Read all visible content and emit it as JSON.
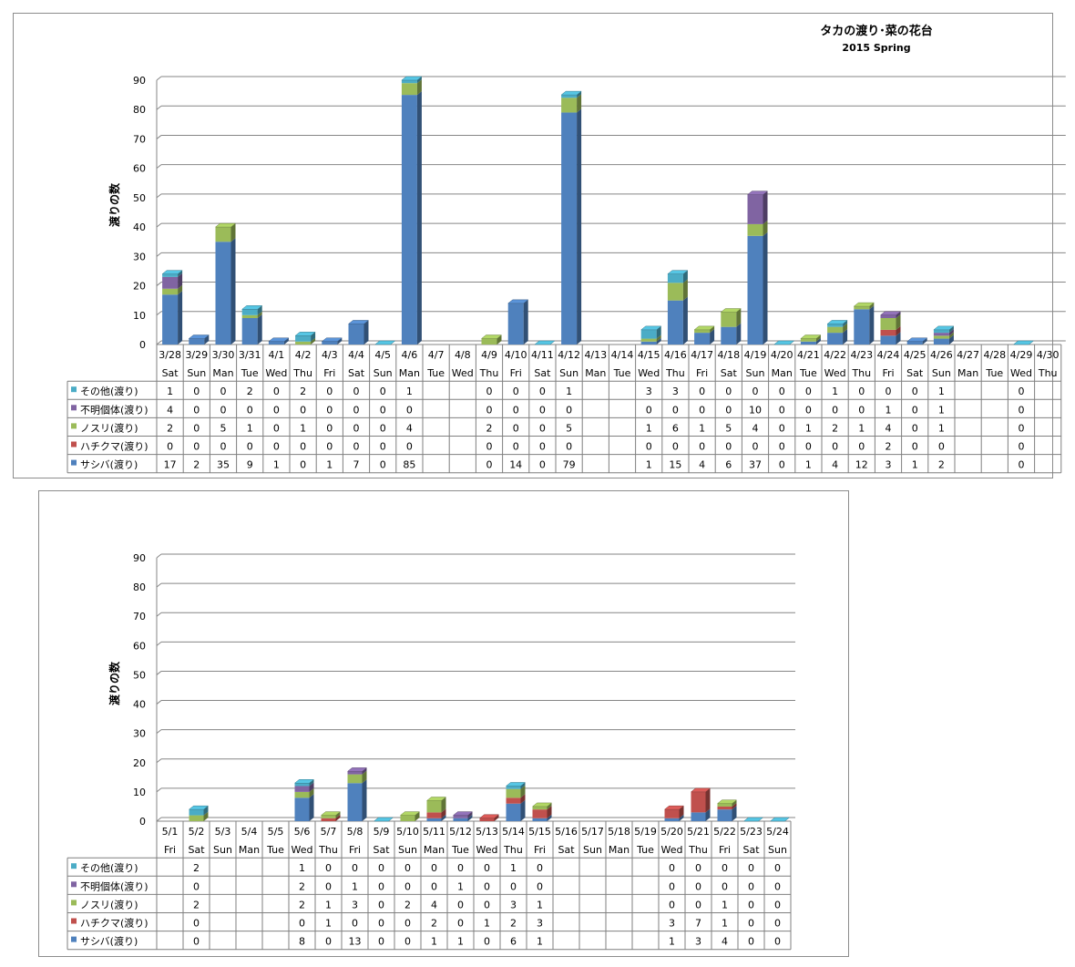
{
  "chart_data": [
    {
      "type": "bar",
      "stacked": true,
      "title": "タカの渡り･菜の花台",
      "subtitle": "2015 Spring",
      "ylabel": "渡りの数",
      "ylim": [
        0,
        90
      ],
      "yticks": [
        "0",
        "10",
        "20",
        "30",
        "40",
        "50",
        "60",
        "70",
        "80",
        "90"
      ],
      "categories": [
        "3/28",
        "3/29",
        "3/30",
        "3/31",
        "4/1",
        "4/2",
        "4/3",
        "4/4",
        "4/5",
        "4/6",
        "4/7",
        "4/8",
        "4/9",
        "4/10",
        "4/11",
        "4/12",
        "4/13",
        "4/14",
        "4/15",
        "4/16",
        "4/17",
        "4/18",
        "4/19",
        "4/20",
        "4/21",
        "4/22",
        "4/23",
        "4/24",
        "4/25",
        "4/26",
        "4/27",
        "4/28",
        "4/29",
        "4/30"
      ],
      "weekdays": [
        "Sat",
        "Sun",
        "Man",
        "Tue",
        "Wed",
        "Thu",
        "Fri",
        "Sat",
        "Sun",
        "Man",
        "Tue",
        "Wed",
        "Thu",
        "Fri",
        "Sat",
        "Sun",
        "Man",
        "Tue",
        "Wed",
        "Thu",
        "Fri",
        "Sat",
        "Sun",
        "Man",
        "Tue",
        "Wed",
        "Thu",
        "Fri",
        "Sat",
        "Sun",
        "Man",
        "Tue",
        "Wed",
        "Thu"
      ],
      "series": [
        {
          "name": "その他(渡り)",
          "color": "#4bacc6",
          "values": [
            1,
            0,
            0,
            2,
            0,
            2,
            0,
            0,
            0,
            1,
            null,
            null,
            0,
            0,
            0,
            1,
            null,
            null,
            3,
            3,
            0,
            0,
            0,
            0,
            0,
            1,
            0,
            0,
            0,
            1,
            null,
            null,
            0,
            null
          ]
        },
        {
          "name": "不明個体(渡り)",
          "color": "#8064a2",
          "values": [
            4,
            0,
            0,
            0,
            0,
            0,
            0,
            0,
            0,
            0,
            null,
            null,
            0,
            0,
            0,
            0,
            null,
            null,
            0,
            0,
            0,
            0,
            10,
            0,
            0,
            0,
            0,
            1,
            0,
            1,
            null,
            null,
            0,
            null
          ]
        },
        {
          "name": "ノスリ(渡り)",
          "color": "#9bbb59",
          "values": [
            2,
            0,
            5,
            1,
            0,
            1,
            0,
            0,
            0,
            4,
            null,
            null,
            2,
            0,
            0,
            5,
            null,
            null,
            1,
            6,
            1,
            5,
            4,
            0,
            1,
            2,
            1,
            4,
            0,
            1,
            null,
            null,
            0,
            null
          ]
        },
        {
          "name": "ハチクマ(渡り)",
          "color": "#c0504d",
          "values": [
            0,
            0,
            0,
            0,
            0,
            0,
            0,
            0,
            0,
            0,
            null,
            null,
            0,
            0,
            0,
            0,
            null,
            null,
            0,
            0,
            0,
            0,
            0,
            0,
            0,
            0,
            0,
            2,
            0,
            0,
            null,
            null,
            0,
            null
          ]
        },
        {
          "name": "サシバ(渡り)",
          "color": "#4f81bd",
          "values": [
            17,
            2,
            35,
            9,
            1,
            0,
            1,
            7,
            0,
            85,
            null,
            null,
            0,
            14,
            0,
            79,
            null,
            null,
            1,
            15,
            4,
            6,
            37,
            0,
            1,
            4,
            12,
            3,
            1,
            2,
            null,
            null,
            0,
            null
          ]
        }
      ]
    },
    {
      "type": "bar",
      "stacked": true,
      "title": "",
      "ylabel": "渡りの数",
      "ylim": [
        0,
        90
      ],
      "yticks": [
        "0",
        "10",
        "20",
        "30",
        "40",
        "50",
        "60",
        "70",
        "80",
        "90"
      ],
      "categories": [
        "5/1",
        "5/2",
        "5/3",
        "5/4",
        "5/5",
        "5/6",
        "5/7",
        "5/8",
        "5/9",
        "5/10",
        "5/11",
        "5/12",
        "5/13",
        "5/14",
        "5/15",
        "5/16",
        "5/17",
        "5/18",
        "5/19",
        "5/20",
        "5/21",
        "5/22",
        "5/23",
        "5/24"
      ],
      "weekdays": [
        "Fri",
        "Sat",
        "Sun",
        "Man",
        "Tue",
        "Wed",
        "Thu",
        "Fri",
        "Sat",
        "Sun",
        "Man",
        "Tue",
        "Wed",
        "Thu",
        "Fri",
        "Sat",
        "Sun",
        "Man",
        "Tue",
        "Wed",
        "Thu",
        "Fri",
        "Sat",
        "Sun"
      ],
      "series": [
        {
          "name": "その他(渡り)",
          "color": "#4bacc6",
          "values": [
            null,
            2,
            null,
            null,
            null,
            1,
            0,
            0,
            0,
            0,
            0,
            0,
            0,
            1,
            0,
            null,
            null,
            null,
            null,
            0,
            0,
            0,
            0,
            0
          ]
        },
        {
          "name": "不明個体(渡り)",
          "color": "#8064a2",
          "values": [
            null,
            0,
            null,
            null,
            null,
            2,
            0,
            1,
            0,
            0,
            0,
            1,
            0,
            0,
            0,
            null,
            null,
            null,
            null,
            0,
            0,
            0,
            0,
            0
          ]
        },
        {
          "name": "ノスリ(渡り)",
          "color": "#9bbb59",
          "values": [
            null,
            2,
            null,
            null,
            null,
            2,
            1,
            3,
            0,
            2,
            4,
            0,
            0,
            3,
            1,
            null,
            null,
            null,
            null,
            0,
            0,
            1,
            0,
            0
          ]
        },
        {
          "name": "ハチクマ(渡り)",
          "color": "#c0504d",
          "values": [
            null,
            0,
            null,
            null,
            null,
            0,
            1,
            0,
            0,
            0,
            2,
            0,
            1,
            2,
            3,
            null,
            null,
            null,
            null,
            3,
            7,
            1,
            0,
            0
          ]
        },
        {
          "name": "サシバ(渡り)",
          "color": "#4f81bd",
          "values": [
            null,
            0,
            null,
            null,
            null,
            8,
            0,
            13,
            0,
            0,
            1,
            1,
            0,
            6,
            1,
            null,
            null,
            null,
            null,
            1,
            3,
            4,
            0,
            0
          ]
        }
      ]
    }
  ]
}
